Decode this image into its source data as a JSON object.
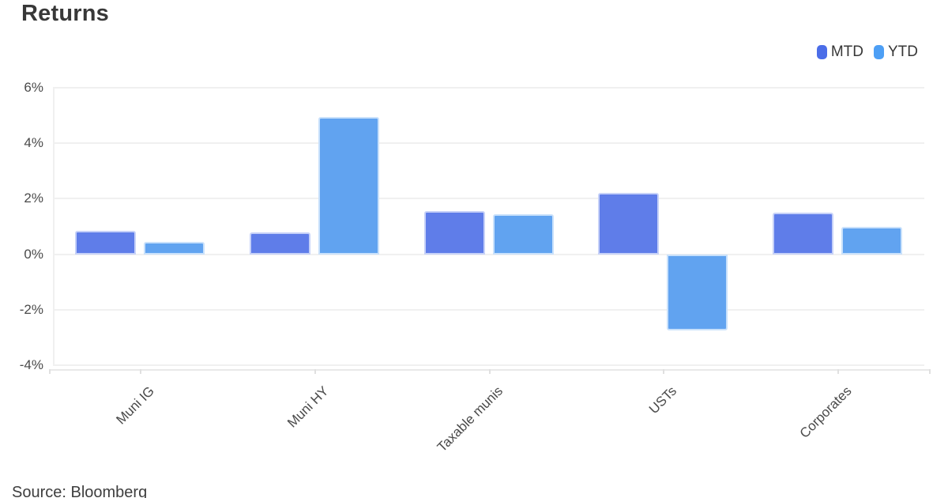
{
  "title": "Returns",
  "source": "Source: Bloomberg",
  "legend": [
    {
      "label": "MTD",
      "color": "#4b6de8"
    },
    {
      "label": "YTD",
      "color": "#4d9ff5"
    }
  ],
  "colors": {
    "mtd_bar_fill": "#5f7de9",
    "mtd_bar_border": "#c6d1f8",
    "ytd_bar_fill": "#61a3f0",
    "ytd_bar_border": "#c9e1fb",
    "gridline": "#f0f0f0",
    "axis_line": "#e9e9e9",
    "axis_tick": "#e0e0e0",
    "label_text": "#4a4a4a"
  },
  "chart_data": {
    "type": "bar",
    "title": "Returns",
    "categories": [
      "Muni IG",
      "Muni HY",
      "Taxable munis",
      "USTs",
      "Corporates"
    ],
    "series": [
      {
        "name": "MTD",
        "values": [
          0.85,
          0.8,
          1.55,
          2.2,
          1.5
        ],
        "color": "#5f7de9",
        "border_color": "#c6d1f8"
      },
      {
        "name": "YTD",
        "values": [
          0.45,
          4.95,
          1.45,
          -2.75,
          1.0
        ],
        "color": "#61a3f0",
        "border_color": "#c9e1fb"
      }
    ],
    "xlabel": "",
    "ylabel": "",
    "ylim": [
      -4,
      6
    ],
    "ytick_step": 2,
    "ytick_labels": [
      "6%",
      "4%",
      "2%",
      "0%",
      "-2%",
      "-4%"
    ],
    "grid": true,
    "legend_position": "top-right",
    "legend_entries": [
      "MTD",
      "YTD"
    ],
    "annotation": "Source: Bloomberg"
  }
}
